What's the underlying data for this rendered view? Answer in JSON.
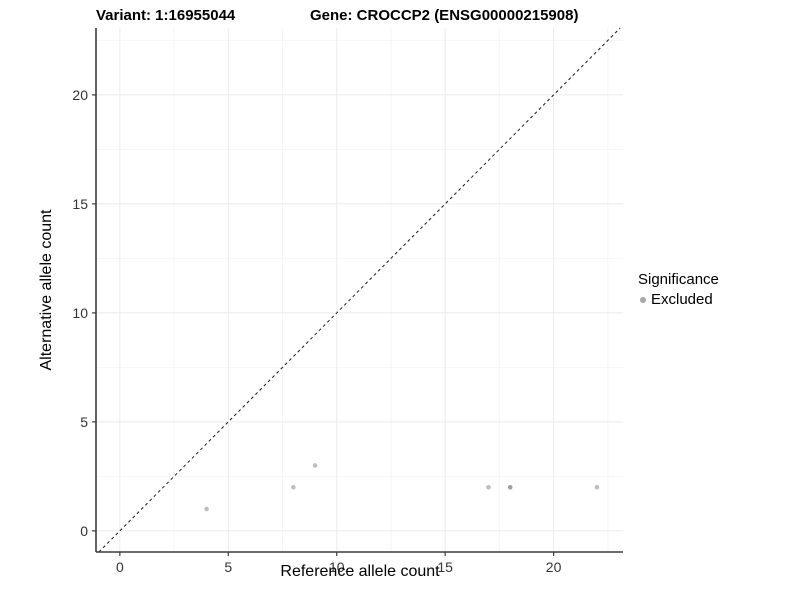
{
  "titles": {
    "left": "Variant: 1:16955044",
    "right": "Gene: CROCCP2 (ENSG00000215908)"
  },
  "legend": {
    "title": "Significance",
    "items": [
      {
        "label": "Excluded",
        "color": "#a8a8a8"
      }
    ]
  },
  "chart_data": {
    "type": "scatter",
    "title": "Variant: 1:16955044 / Gene: CROCCP2 (ENSG00000215908)",
    "xlabel": "Reference allele count",
    "ylabel": "Alternative allele count",
    "xlim": [
      -1.1,
      23.2
    ],
    "ylim": [
      -0.97,
      23.07
    ],
    "x_ticks": [
      0,
      5,
      10,
      15,
      20
    ],
    "y_ticks": [
      0,
      5,
      10,
      15,
      20
    ],
    "x_minor": [
      2.5,
      7.5,
      12.5,
      17.5,
      22.5
    ],
    "y_minor": [
      2.5,
      7.5,
      12.5,
      17.5,
      22.5
    ],
    "grid": true,
    "legend_position": "right",
    "series": [
      {
        "name": "Excluded",
        "points": [
          {
            "x": 4,
            "y": 1,
            "color": "#bfbfbf"
          },
          {
            "x": 8,
            "y": 2,
            "color": "#bfbfbf"
          },
          {
            "x": 9,
            "y": 3,
            "color": "#bfbfbf"
          },
          {
            "x": 17,
            "y": 2,
            "color": "#bfbfbf"
          },
          {
            "x": 18,
            "y": 2,
            "color": "#9f9f9f"
          },
          {
            "x": 22,
            "y": 2,
            "color": "#bfbfbf"
          }
        ]
      }
    ],
    "identity_line": {
      "slope": 1,
      "intercept": 0,
      "style": "dashed",
      "color": "#1a1a1a"
    },
    "colors": {
      "background": "#ffffff",
      "grid_major": "#ebebeb",
      "grid_minor": "#f5f5f5",
      "axis_line": "#3c3c3c",
      "tick_label": "#333333",
      "point_default": "#bfbfbf"
    }
  }
}
